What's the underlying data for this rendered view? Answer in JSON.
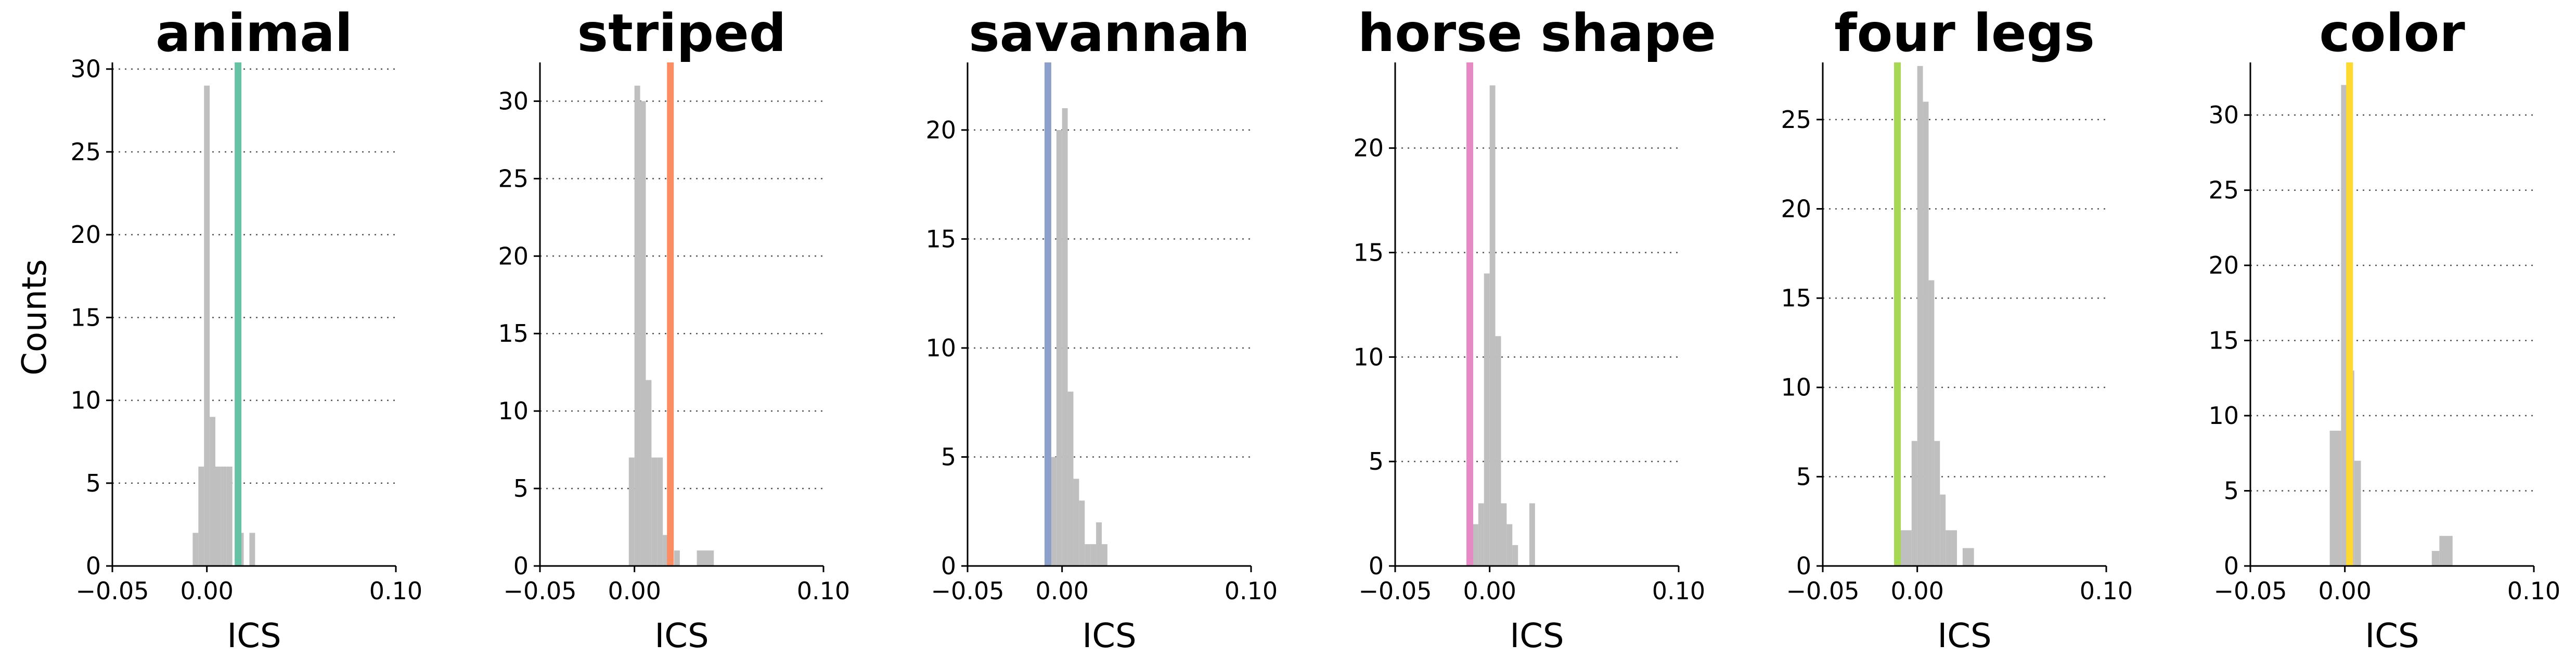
{
  "figure": {
    "ylabel": "Counts"
  },
  "chart_data": [
    {
      "type": "bar",
      "title": "animal",
      "xlabel": "ICS",
      "ylabel": "Counts",
      "xlim": [
        -0.05,
        0.1
      ],
      "ylim": [
        0,
        30.4
      ],
      "xticks": [
        -0.05,
        0.0,
        0.1
      ],
      "xtick_labels": [
        "−0.05",
        "0.00",
        "0.10"
      ],
      "yticks": [
        0,
        5,
        10,
        15,
        20,
        25,
        30
      ],
      "grid": "horizontal-dotted",
      "marker_color": "#66c2a5",
      "marker_x": 0.0165,
      "bins": [
        {
          "x0": -0.0075,
          "x1": -0.0045,
          "count": 2
        },
        {
          "x0": -0.0045,
          "x1": -0.0015,
          "count": 6
        },
        {
          "x0": -0.0015,
          "x1": 0.0015,
          "count": 29
        },
        {
          "x0": 0.0015,
          "x1": 0.0045,
          "count": 9
        },
        {
          "x0": 0.0045,
          "x1": 0.0075,
          "count": 6
        },
        {
          "x0": 0.0075,
          "x1": 0.0105,
          "count": 6
        },
        {
          "x0": 0.0105,
          "x1": 0.0135,
          "count": 6
        },
        {
          "x0": 0.0165,
          "x1": 0.0195,
          "count": 2
        },
        {
          "x0": 0.0225,
          "x1": 0.0255,
          "count": 2
        }
      ]
    },
    {
      "type": "bar",
      "title": "striped",
      "xlabel": "ICS",
      "ylabel": "",
      "xlim": [
        -0.05,
        0.1
      ],
      "ylim": [
        0,
        32.5
      ],
      "xticks": [
        -0.05,
        0.0,
        0.1
      ],
      "xtick_labels": [
        "−0.05",
        "0.00",
        "0.10"
      ],
      "yticks": [
        0,
        5,
        10,
        15,
        20,
        25,
        30
      ],
      "grid": "horizontal-dotted",
      "marker_color": "#fc8d62",
      "marker_x": 0.019,
      "bins": [
        {
          "x0": -0.003,
          "x1": 0.0,
          "count": 7
        },
        {
          "x0": 0.0,
          "x1": 0.003,
          "count": 31
        },
        {
          "x0": 0.003,
          "x1": 0.006,
          "count": 30
        },
        {
          "x0": 0.006,
          "x1": 0.009,
          "count": 12
        },
        {
          "x0": 0.009,
          "x1": 0.012,
          "count": 7
        },
        {
          "x0": 0.012,
          "x1": 0.015,
          "count": 7
        },
        {
          "x0": 0.015,
          "x1": 0.018,
          "count": 2
        },
        {
          "x0": 0.021,
          "x1": 0.024,
          "count": 1
        },
        {
          "x0": 0.033,
          "x1": 0.042,
          "count": 1
        }
      ]
    },
    {
      "type": "bar",
      "title": "savannah",
      "xlabel": "ICS",
      "ylabel": "",
      "xlim": [
        -0.05,
        0.1
      ],
      "ylim": [
        0,
        23.1
      ],
      "xticks": [
        -0.05,
        0.0,
        0.1
      ],
      "xtick_labels": [
        "−0.05",
        "0.00",
        "0.10"
      ],
      "yticks": [
        0,
        5,
        10,
        15,
        20
      ],
      "grid": "horizontal-dotted",
      "marker_color": "#8da0cb",
      "marker_x": -0.0075,
      "bins": [
        {
          "x0": -0.009,
          "x1": -0.006,
          "count": 1
        },
        {
          "x0": -0.006,
          "x1": -0.003,
          "count": 5
        },
        {
          "x0": -0.003,
          "x1": 0.0,
          "count": 20
        },
        {
          "x0": 0.0,
          "x1": 0.003,
          "count": 21
        },
        {
          "x0": 0.003,
          "x1": 0.006,
          "count": 8
        },
        {
          "x0": 0.006,
          "x1": 0.009,
          "count": 4
        },
        {
          "x0": 0.009,
          "x1": 0.012,
          "count": 3
        },
        {
          "x0": 0.012,
          "x1": 0.015,
          "count": 1
        },
        {
          "x0": 0.015,
          "x1": 0.018,
          "count": 1
        },
        {
          "x0": 0.018,
          "x1": 0.021,
          "count": 2
        },
        {
          "x0": 0.021,
          "x1": 0.024,
          "count": 1
        }
      ]
    },
    {
      "type": "bar",
      "title": "horse shape",
      "xlabel": "ICS",
      "ylabel": "",
      "xlim": [
        -0.05,
        0.1
      ],
      "ylim": [
        0,
        24.1
      ],
      "xticks": [
        -0.05,
        0.0,
        0.1
      ],
      "xtick_labels": [
        "−0.05",
        "0.00",
        "0.10"
      ],
      "yticks": [
        0,
        5,
        10,
        15,
        20
      ],
      "grid": "horizontal-dotted",
      "marker_color": "#e78ac3",
      "marker_x": -0.0105,
      "bins": [
        {
          "x0": -0.012,
          "x1": -0.009,
          "count": 1
        },
        {
          "x0": -0.009,
          "x1": -0.006,
          "count": 2
        },
        {
          "x0": -0.006,
          "x1": -0.003,
          "count": 3
        },
        {
          "x0": -0.003,
          "x1": 0.0,
          "count": 14
        },
        {
          "x0": 0.0,
          "x1": 0.003,
          "count": 23
        },
        {
          "x0": 0.003,
          "x1": 0.006,
          "count": 11
        },
        {
          "x0": 0.006,
          "x1": 0.009,
          "count": 3
        },
        {
          "x0": 0.009,
          "x1": 0.012,
          "count": 2
        },
        {
          "x0": 0.012,
          "x1": 0.015,
          "count": 1
        },
        {
          "x0": 0.021,
          "x1": 0.024,
          "count": 3
        }
      ]
    },
    {
      "type": "bar",
      "title": "four legs",
      "xlabel": "ICS",
      "ylabel": "",
      "xlim": [
        -0.05,
        0.1
      ],
      "ylim": [
        0,
        28.2
      ],
      "xticks": [
        -0.05,
        0.0,
        0.1
      ],
      "xtick_labels": [
        "−0.05",
        "0.00",
        "0.10"
      ],
      "yticks": [
        0,
        5,
        10,
        15,
        20,
        25
      ],
      "grid": "horizontal-dotted",
      "marker_color": "#a6d854",
      "marker_x": -0.0105,
      "bins": [
        {
          "x0": -0.009,
          "x1": -0.003,
          "count": 2
        },
        {
          "x0": -0.003,
          "x1": 0.0,
          "count": 7
        },
        {
          "x0": 0.0,
          "x1": 0.003,
          "count": 28
        },
        {
          "x0": 0.003,
          "x1": 0.006,
          "count": 26
        },
        {
          "x0": 0.006,
          "x1": 0.009,
          "count": 16
        },
        {
          "x0": 0.009,
          "x1": 0.012,
          "count": 7
        },
        {
          "x0": 0.012,
          "x1": 0.015,
          "count": 4
        },
        {
          "x0": 0.015,
          "x1": 0.018,
          "count": 2
        },
        {
          "x0": 0.018,
          "x1": 0.021,
          "count": 2
        },
        {
          "x0": 0.024,
          "x1": 0.03,
          "count": 1
        }
      ]
    },
    {
      "type": "bar",
      "title": "color",
      "xlabel": "ICS",
      "ylabel": "",
      "xlim": [
        -0.05,
        0.1
      ],
      "ylim": [
        0,
        33.5
      ],
      "xticks": [
        -0.05,
        0.0,
        0.1
      ],
      "xtick_labels": [
        "−0.05",
        "0.00",
        "0.10"
      ],
      "yticks": [
        0,
        5,
        10,
        15,
        20,
        25,
        30
      ],
      "grid": "horizontal-dotted",
      "marker_color": "#ffd92f",
      "marker_x": 0.0025,
      "bins": [
        {
          "x0": -0.008,
          "x1": -0.002,
          "count": 9
        },
        {
          "x0": -0.002,
          "x1": 0.002,
          "count": 32
        },
        {
          "x0": 0.002,
          "x1": 0.005,
          "count": 13
        },
        {
          "x0": 0.005,
          "x1": 0.0085,
          "count": 7
        },
        {
          "x0": 0.046,
          "x1": 0.05,
          "count": 1
        },
        {
          "x0": 0.05,
          "x1": 0.057,
          "count": 2
        }
      ]
    }
  ]
}
